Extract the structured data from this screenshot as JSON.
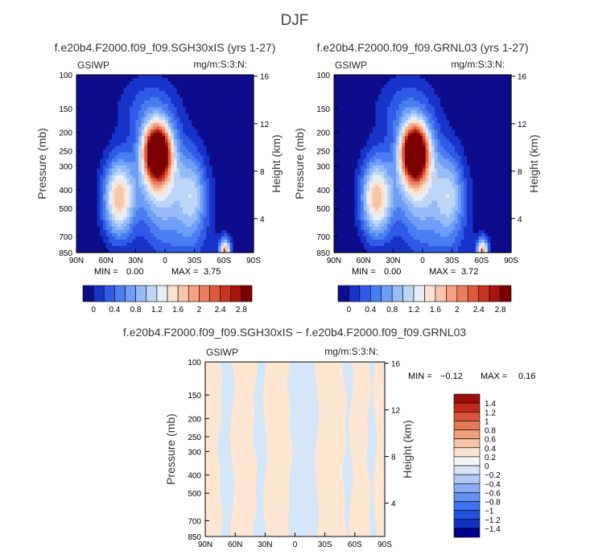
{
  "figure_title": "DJF",
  "diff_title": "f.e20b4.F2000.f09_f09.SGH30xIS − f.e20b4.F2000.f09_f09.GRNL03",
  "colors": {
    "main_scale": [
      "#0d0d8c",
      "#1733c8",
      "#2f5be6",
      "#4a7ef0",
      "#6e9ef5",
      "#96bcf7",
      "#bdd6f8",
      "#e6eef6",
      "#fde2cf",
      "#f9c4a7",
      "#f4a283",
      "#eb7d60",
      "#de5a3d",
      "#c8341f",
      "#a8150f",
      "#7d0000"
    ],
    "diff_scale": [
      "#00008a",
      "#1030c0",
      "#2452e0",
      "#3f72ee",
      "#6390f2",
      "#89acf5",
      "#b3caf7",
      "#d6e4f6",
      "#f4f4f4",
      "#fbe2ce",
      "#f6c3a4",
      "#f0a07d",
      "#e57a57",
      "#d6523a",
      "#c02a1c",
      "#9b0e0a"
    ],
    "diff_field_neg": "#d5e6f8",
    "diff_field_pos": "#fde7d2",
    "pressure_label_color": "#000000"
  },
  "chart_data": [
    {
      "type": "heatmap",
      "title": "f.e20b4.F2000.f09_f09.SGH30xIS (yrs 1-27)",
      "variable": "GSIWP",
      "units": "mg/m:S:3:N:",
      "xlabel": "",
      "ylabel": "Pressure (mb)",
      "ylabel_right": "Height (km)",
      "x_ticks": [
        "90N",
        "60N",
        "30N",
        "0",
        "30S",
        "60S",
        "90S"
      ],
      "x_values": [
        90,
        60,
        30,
        0,
        -30,
        -60,
        -90
      ],
      "y_ticks": [
        100,
        150,
        200,
        250,
        300,
        400,
        500,
        700,
        850
      ],
      "y_ticks_right": [
        16,
        12,
        8,
        4
      ],
      "xlim": [
        90,
        -90
      ],
      "ylim": [
        100,
        850
      ],
      "y_scale": "log",
      "min_label": "MIN =",
      "min_value": "0.00",
      "max_label": "MAX =",
      "max_value": "3.75",
      "colorbar_labels": [
        "0",
        "0.4",
        "0.8",
        "1.2",
        "1.6",
        "2",
        "2.4",
        "2.8"
      ],
      "features": [
        {
          "lat": 8,
          "p": 255,
          "peak": 3.75
        },
        {
          "lat": 47,
          "p": 440,
          "peak": 1.9
        },
        {
          "lat": -61,
          "p": 830,
          "peak": 2.0
        }
      ]
    },
    {
      "type": "heatmap",
      "title": "f.e20b4.F2000.f09_f09.GRNL03 (yrs 1-27)",
      "variable": "GSIWP",
      "units": "mg/m:S:3:N:",
      "xlabel": "",
      "ylabel": "Pressure (mb)",
      "ylabel_right": "Height (km)",
      "x_ticks": [
        "90N",
        "60N",
        "30N",
        "0",
        "30S",
        "60S",
        "90S"
      ],
      "x_values": [
        90,
        60,
        30,
        0,
        -30,
        -60,
        -90
      ],
      "y_ticks": [
        100,
        150,
        200,
        250,
        300,
        400,
        500,
        700,
        850
      ],
      "y_ticks_right": [
        16,
        12,
        8,
        4
      ],
      "xlim": [
        90,
        -90
      ],
      "ylim": [
        100,
        850
      ],
      "y_scale": "log",
      "min_label": "MIN =",
      "min_value": "0.00",
      "max_label": "MAX =",
      "max_value": "3.72",
      "colorbar_labels": [
        "0",
        "0.4",
        "0.8",
        "1.2",
        "1.6",
        "2",
        "2.4",
        "2.8"
      ],
      "features": [
        {
          "lat": 8,
          "p": 255,
          "peak": 3.72
        },
        {
          "lat": 47,
          "p": 440,
          "peak": 1.9
        },
        {
          "lat": -61,
          "p": 830,
          "peak": 2.0
        }
      ]
    },
    {
      "type": "heatmap",
      "title": "f.e20b4.F2000.f09_f09.SGH30xIS − f.e20b4.F2000.f09_f09.GRNL03",
      "variable": "GSIWP",
      "units": "mg/m:S:3:N:",
      "xlabel": "",
      "ylabel": "Pressure (mb)",
      "ylabel_right": "Height (km)",
      "x_ticks": [
        "90N",
        "60N",
        "30N",
        "0",
        "30S",
        "60S",
        "90S"
      ],
      "x_values": [
        90,
        60,
        30,
        0,
        -30,
        -60,
        -90
      ],
      "y_ticks": [
        100,
        150,
        200,
        250,
        300,
        400,
        500,
        700,
        850
      ],
      "y_ticks_right": [
        16,
        12,
        8,
        4
      ],
      "xlim": [
        90,
        -90
      ],
      "ylim": [
        100,
        850
      ],
      "y_scale": "log",
      "min_label": "MIN =",
      "min_value": "−0.12",
      "max_label": "MAX =",
      "max_value": "0.16",
      "colorbar_labels": [
        "1.4",
        "1.2",
        "1",
        "0.8",
        "0.6",
        "0.4",
        "0.2",
        "0",
        "−0.2",
        "−0.4",
        "−0.6",
        "−0.8",
        "−1",
        "−1.2",
        "−1.4"
      ],
      "colorbar_orientation": "vertical",
      "negative_bands": [
        [
          75,
          63
        ],
        [
          40,
          30
        ],
        [
          5,
          -22
        ],
        [
          -50,
          -56
        ],
        [
          -74,
          -80
        ]
      ]
    }
  ]
}
